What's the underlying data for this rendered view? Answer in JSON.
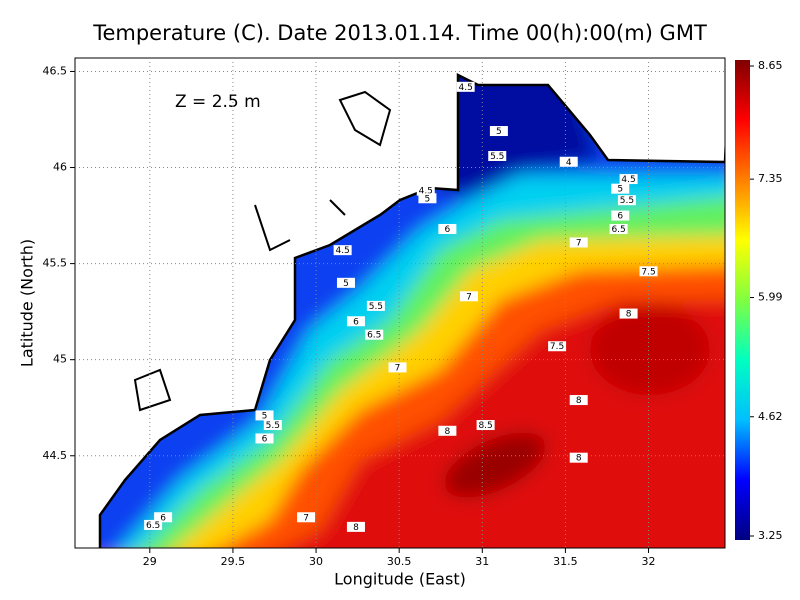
{
  "chart_data": {
    "type": "heatmap",
    "title": "Temperature (C). Date 2013.01.14. Time 00(h):00(m) GMT",
    "annotation": "Z = 2.5 m",
    "xlabel": "Longitude (East)",
    "ylabel": "Latitude (North)",
    "xlim": [
      28.55,
      32.46
    ],
    "ylim": [
      44.02,
      46.57
    ],
    "xticks": [
      29,
      29.5,
      30,
      30.5,
      31,
      31.5,
      32
    ],
    "yticks": [
      44.5,
      45,
      45.5,
      46,
      46.5
    ],
    "grid": true,
    "colorbar": {
      "lim": [
        3.25,
        8.65
      ],
      "ticks": [
        3.25,
        4.62,
        5.99,
        7.35,
        8.65
      ],
      "colors": [
        "#000080",
        "#0000ff",
        "#00bfff",
        "#00ffc0",
        "#80ff40",
        "#ffff00",
        "#ff8000",
        "#ff0000",
        "#800000"
      ]
    },
    "contour_labels": [
      {
        "value": 4.5,
        "lon": 30.9,
        "lat": 46.42
      },
      {
        "value": 5,
        "lon": 31.1,
        "lat": 46.19
      },
      {
        "value": 5.5,
        "lon": 31.09,
        "lat": 46.06
      },
      {
        "value": 4,
        "lon": 31.52,
        "lat": 46.03
      },
      {
        "value": 4.5,
        "lon": 31.88,
        "lat": 45.94
      },
      {
        "value": 5,
        "lon": 31.83,
        "lat": 45.89
      },
      {
        "value": 5.5,
        "lon": 31.87,
        "lat": 45.83
      },
      {
        "value": 6,
        "lon": 31.83,
        "lat": 45.75
      },
      {
        "value": 6.5,
        "lon": 31.82,
        "lat": 45.68
      },
      {
        "value": 7,
        "lon": 31.58,
        "lat": 45.61
      },
      {
        "value": 7.5,
        "lon": 32.0,
        "lat": 45.46
      },
      {
        "value": 4.5,
        "lon": 30.66,
        "lat": 45.88
      },
      {
        "value": 5,
        "lon": 30.67,
        "lat": 45.84
      },
      {
        "value": 6,
        "lon": 30.79,
        "lat": 45.68
      },
      {
        "value": 4.5,
        "lon": 30.16,
        "lat": 45.57
      },
      {
        "value": 5,
        "lon": 30.18,
        "lat": 45.4
      },
      {
        "value": 5.5,
        "lon": 30.36,
        "lat": 45.28
      },
      {
        "value": 6,
        "lon": 30.24,
        "lat": 45.2
      },
      {
        "value": 6.5,
        "lon": 30.35,
        "lat": 45.13
      },
      {
        "value": 7,
        "lon": 30.49,
        "lat": 44.96
      },
      {
        "value": 7,
        "lon": 30.92,
        "lat": 45.33
      },
      {
        "value": 8,
        "lon": 31.88,
        "lat": 45.24
      },
      {
        "value": 7.5,
        "lon": 31.45,
        "lat": 45.07
      },
      {
        "value": 8,
        "lon": 31.58,
        "lat": 44.79
      },
      {
        "value": 5,
        "lon": 29.69,
        "lat": 44.71
      },
      {
        "value": 5.5,
        "lon": 29.74,
        "lat": 44.66
      },
      {
        "value": 6,
        "lon": 29.69,
        "lat": 44.59
      },
      {
        "value": 8,
        "lon": 30.79,
        "lat": 44.63
      },
      {
        "value": 8.5,
        "lon": 31.02,
        "lat": 44.66
      },
      {
        "value": 8,
        "lon": 31.58,
        "lat": 44.49
      },
      {
        "value": 6,
        "lon": 29.08,
        "lat": 44.18
      },
      {
        "value": 6.5,
        "lon": 29.02,
        "lat": 44.14
      },
      {
        "value": 7,
        "lon": 29.94,
        "lat": 44.18
      },
      {
        "value": 8,
        "lon": 30.24,
        "lat": 44.13
      }
    ]
  }
}
